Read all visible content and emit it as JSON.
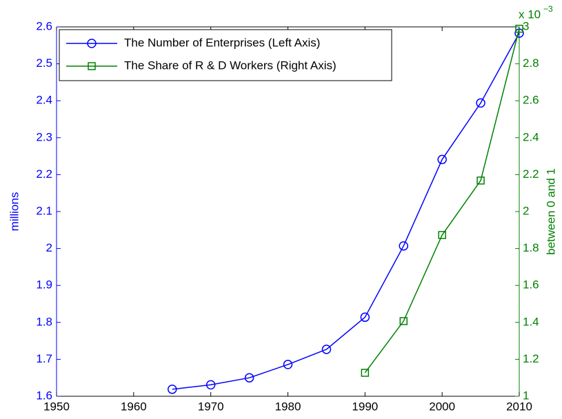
{
  "chart_data": {
    "type": "line",
    "x": [
      1965,
      1970,
      1975,
      1980,
      1985,
      1990,
      1995,
      2000,
      2005,
      2010
    ],
    "series": [
      {
        "name": "The Number of Enterprises (Left Axis)",
        "color": "#0000ff",
        "marker": "circle",
        "values": [
          1.619,
          1.631,
          1.65,
          1.686,
          1.727,
          1.814,
          2.007,
          2.241,
          2.394,
          2.583
        ]
      },
      {
        "name": "The Share of R & D Workers (Right Axis)",
        "color": "#008000",
        "marker": "square",
        "axis": "y2",
        "values": [
          null,
          null,
          null,
          null,
          null,
          1.127,
          1.407,
          1.873,
          2.168,
          2.99
        ]
      }
    ],
    "xlim": [
      1950,
      2010
    ],
    "xticks": [
      1950,
      1960,
      1970,
      1980,
      1990,
      2000,
      2010
    ],
    "ylim": [
      1.6,
      2.6
    ],
    "yticks": [
      1.6,
      1.7,
      1.8,
      1.9,
      2,
      2.1,
      2.2,
      2.3,
      2.4,
      2.5,
      2.6
    ],
    "y2lim": [
      1,
      3
    ],
    "y2ticks": [
      1,
      1.2,
      1.4,
      1.6,
      1.8,
      2,
      2.2,
      2.4,
      2.6,
      2.8,
      3
    ],
    "ylabel": "millions",
    "y2label": "between 0 and 1",
    "y2_multiplier_base": "x 10",
    "y2_multiplier_exponent": "−3",
    "legend": "top-left"
  }
}
